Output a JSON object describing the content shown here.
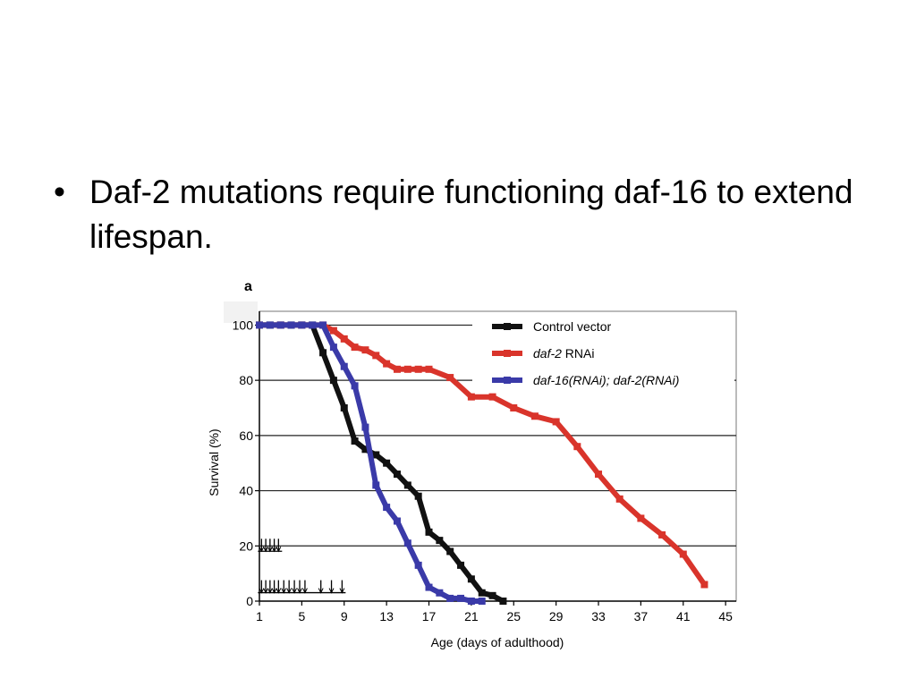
{
  "slide": {
    "bullet": "Daf-2 mutations require functioning daf-16 to extend lifespan."
  },
  "chart_data": {
    "type": "line",
    "panel_label": "a",
    "xlabel": "Age (days of adulthood)",
    "ylabel": "Survival (%)",
    "xlim": [
      1,
      46
    ],
    "ylim": [
      0,
      105
    ],
    "x_ticks": [
      1,
      5,
      9,
      13,
      17,
      21,
      25,
      29,
      33,
      37,
      41,
      45
    ],
    "y_ticks": [
      0,
      20,
      40,
      60,
      80,
      100
    ],
    "grid": "horizontal",
    "legend_position": "top-right",
    "series": [
      {
        "name": "Control vector",
        "name_parts": [
          {
            "text": "Control vector",
            "italic": false
          }
        ],
        "color": "#111111",
        "x": [
          1,
          2,
          3,
          4,
          5,
          6,
          7,
          8,
          9,
          10,
          11,
          12,
          13,
          14,
          15,
          16,
          17,
          18,
          19,
          20,
          21,
          22,
          23,
          24
        ],
        "y": [
          100,
          100,
          100,
          100,
          100,
          100,
          90,
          80,
          70,
          58,
          55,
          53,
          50,
          46,
          42,
          38,
          25,
          22,
          18,
          13,
          8,
          3,
          2,
          0
        ]
      },
      {
        "name": "daf-2 RNAi",
        "name_parts": [
          {
            "text": "daf-2",
            "italic": true
          },
          {
            "text": " RNAi",
            "italic": false
          }
        ],
        "color": "#d9342b",
        "x": [
          1,
          3,
          5,
          7,
          8,
          9,
          10,
          11,
          12,
          13,
          14,
          15,
          16,
          17,
          19,
          21,
          23,
          25,
          27,
          29,
          31,
          33,
          35,
          37,
          39,
          41,
          43
        ],
        "y": [
          100,
          100,
          100,
          100,
          98,
          95,
          92,
          91,
          89,
          86,
          84,
          84,
          84,
          84,
          81,
          74,
          74,
          70,
          67,
          65,
          56,
          46,
          37,
          30,
          24,
          17,
          6
        ]
      },
      {
        "name": "daf-16(RNAi); daf-2(RNAi)",
        "name_parts": [
          {
            "text": "daf-16(RNAi); daf-2(RNAi)",
            "italic": true
          }
        ],
        "color": "#3a3aa8",
        "x": [
          1,
          2,
          3,
          4,
          5,
          6,
          7,
          8,
          9,
          10,
          11,
          12,
          13,
          14,
          15,
          16,
          17,
          18,
          19,
          20,
          21,
          22
        ],
        "y": [
          100,
          100,
          100,
          100,
          100,
          100,
          100,
          92,
          85,
          78,
          63,
          42,
          34,
          29,
          21,
          13,
          5,
          3,
          1,
          1,
          0,
          0
        ]
      }
    ],
    "censor_marks": [
      {
        "y": 20,
        "x": [
          1.2,
          1.6,
          2.0,
          2.4,
          2.8
        ]
      },
      {
        "y": 5,
        "x": [
          1.2,
          1.6,
          2.0,
          2.4,
          2.8,
          3.3,
          3.8,
          4.3,
          4.8,
          5.3,
          6.8,
          7.8,
          8.8
        ]
      }
    ]
  }
}
